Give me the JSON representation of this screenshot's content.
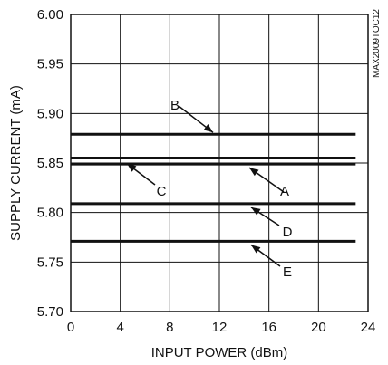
{
  "chart_data": {
    "type": "line",
    "title": "",
    "xlabel": "INPUT POWER (dBm)",
    "ylabel": "SUPPLY CURRENT (mA)",
    "xlim": [
      0,
      24
    ],
    "ylim": [
      5.7,
      6.0
    ],
    "xticks": [
      0,
      4,
      8,
      12,
      16,
      20,
      24
    ],
    "yticks": [
      5.7,
      5.75,
      5.8,
      5.85,
      5.9,
      5.95,
      6.0
    ],
    "xtick_labels": [
      "0",
      "4",
      "8",
      "12",
      "16",
      "20",
      "24"
    ],
    "ytick_labels": [
      "5.70",
      "5.75",
      "5.80",
      "5.85",
      "5.90",
      "5.95",
      "6.00"
    ],
    "grid": true,
    "series": [
      {
        "name": "A",
        "x": [
          0,
          23
        ],
        "y": [
          5.849,
          5.849
        ]
      },
      {
        "name": "B",
        "x": [
          0,
          23
        ],
        "y": [
          5.879,
          5.879
        ]
      },
      {
        "name": "C",
        "x": [
          0,
          23
        ],
        "y": [
          5.855,
          5.855
        ]
      },
      {
        "name": "D",
        "x": [
          0,
          23
        ],
        "y": [
          5.809,
          5.809
        ]
      },
      {
        "name": "E",
        "x": [
          0,
          23
        ],
        "y": [
          5.771,
          5.771
        ]
      }
    ],
    "annotations": [
      {
        "text": "A",
        "target_series": "A"
      },
      {
        "text": "B",
        "target_series": "B"
      },
      {
        "text": "C",
        "target_series": "C"
      },
      {
        "text": "D",
        "target_series": "D"
      },
      {
        "text": "E",
        "target_series": "E"
      }
    ],
    "figure_code": "MAX2009TOC12"
  }
}
